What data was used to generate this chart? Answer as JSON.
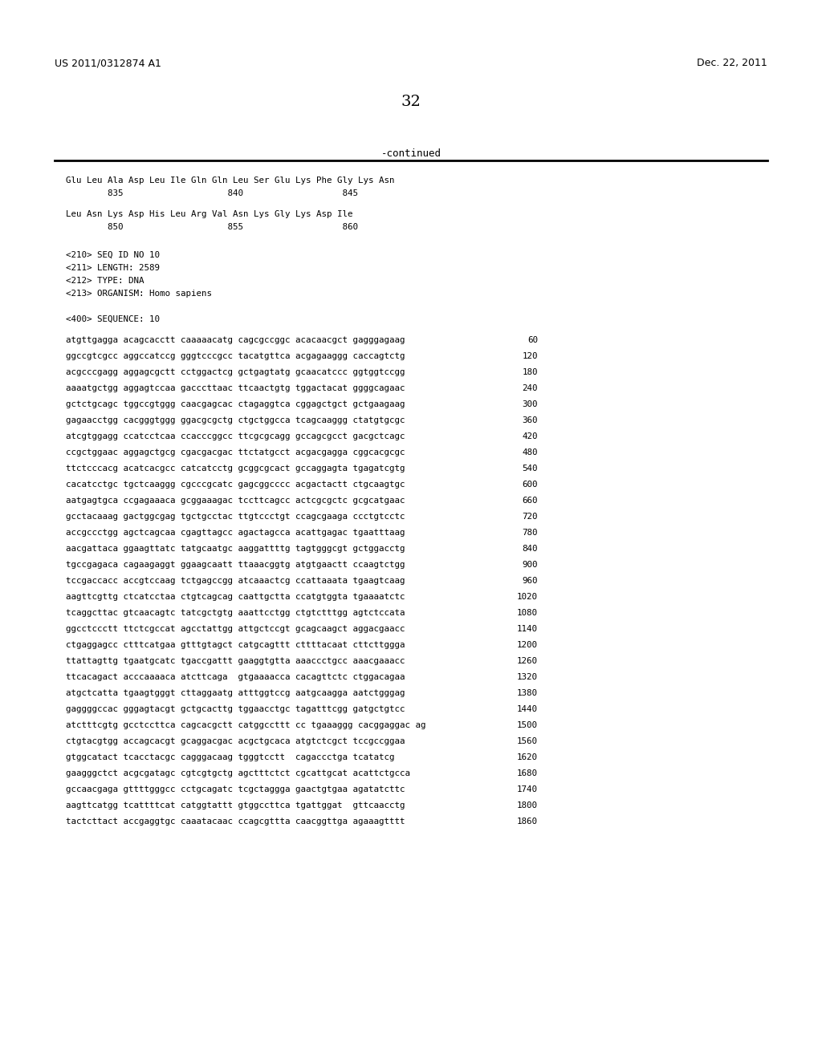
{
  "header_left": "US 2011/0312874 A1",
  "header_right": "Dec. 22, 2011",
  "page_number": "32",
  "continued_label": "-continued",
  "background_color": "#ffffff",
  "text_color": "#000000",
  "aa_line1": "Glu Leu Ala Asp Leu Ile Gln Gln Leu Ser Glu Lys Phe Gly Lys Asn",
  "aa_num1": "        835                    840                   845",
  "aa_line2": "Leu Asn Lys Asp His Leu Arg Val Asn Lys Gly Lys Asp Ile",
  "aa_num2": "        850                    855                   860",
  "seq_info": [
    "<210> SEQ ID NO 10",
    "<211> LENGTH: 2589",
    "<212> TYPE: DNA",
    "<213> ORGANISM: Homo sapiens"
  ],
  "seq_header": "<400> SEQUENCE: 10",
  "dna_lines": [
    {
      "seq": "atgttgagga acagcacctt caaaaacatg cagcgccggc acacaacgct gagggagaag",
      "num": "60"
    },
    {
      "seq": "ggccgtcgcc aggccatccg gggtcccgcc tacatgttca acgagaaggg caccagtctg",
      "num": "120"
    },
    {
      "seq": "acgcccgagg aggagcgctt cctggactcg gctgagtatg gcaacatccc ggtggtccgg",
      "num": "180"
    },
    {
      "seq": "aaaatgctgg aggagtccaa gacccttaac ttcaactgtg tggactacat ggggcagaac",
      "num": "240"
    },
    {
      "seq": "gctctgcagc tggccgtggg caacgagcac ctagaggtca cggagctgct gctgaagaag",
      "num": "300"
    },
    {
      "seq": "gagaacctgg cacgggtggg ggacgcgctg ctgctggcca tcagcaaggg ctatgtgcgc",
      "num": "360"
    },
    {
      "seq": "atcgtggagg ccatcctcaa ccacccggcc ttcgcgcagg gccagcgcct gacgctcagc",
      "num": "420"
    },
    {
      "seq": "ccgctggaac aggagctgcg cgacgacgac ttctatgcct acgacgagga cggcacgcgc",
      "num": "480"
    },
    {
      "seq": "ttctcccacg acatcacgcc catcatcctg gcggcgcact gccaggagta tgagatcgtg",
      "num": "540"
    },
    {
      "seq": "cacatcctgc tgctcaaggg cgcccgcatc gagcggcccc acgactactt ctgcaagtgc",
      "num": "600"
    },
    {
      "seq": "aatgagtgca ccgagaaaca gcggaaagac tccttcagcc actcgcgctc gcgcatgaac",
      "num": "660"
    },
    {
      "seq": "gcctacaaag gactggcgag tgctgcctac ttgtccctgt ccagcgaaga ccctgtcctc",
      "num": "720"
    },
    {
      "seq": "accgccctgg agctcagcaa cgagttagcc agactagcca acattgagac tgaatttaag",
      "num": "780"
    },
    {
      "seq": "aacgattaca ggaagttatc tatgcaatgc aaggattttg tagtgggcgt gctggacctg",
      "num": "840"
    },
    {
      "seq": "tgccgagaca cagaagaggt ggaagcaatt ttaaacggtg atgtgaactt ccaagtctgg",
      "num": "900"
    },
    {
      "seq": "tccgaccacc accgtccaag tctgagccgg atcaaactcg ccattaaata tgaagtcaag",
      "num": "960"
    },
    {
      "seq": "aagttcgttg ctcatcctaa ctgtcagcag caattgctta ccatgtggta tgaaaatctc",
      "num": "1020"
    },
    {
      "seq": "tcaggcttac gtcaacagtc tatcgctgtg aaattcctgg ctgtctttgg agtctccata",
      "num": "1080"
    },
    {
      "seq": "ggcctccctt ttctcgccat agcctattgg attgctccgt gcagcaagct aggacgaacc",
      "num": "1140"
    },
    {
      "seq": "ctgaggagcc ctttcatgaa gtttgtagct catgcagttt cttttacaat cttcttggga",
      "num": "1200"
    },
    {
      "seq": "ttattagttg tgaatgcatc tgaccgattt gaaggtgtta aaaccctgcc aaacgaaacc",
      "num": "1260"
    },
    {
      "seq": "ttcacagact acccaaaaca atcttcaga  gtgaaaacca cacagttctc ctggacagaa",
      "num": "1320"
    },
    {
      "seq": "atgctcatta tgaagtgggt cttaggaatg atttggtccg aatgcaagga aatctgggag",
      "num": "1380"
    },
    {
      "seq": "gaggggccac gggagtacgt gctgcacttg tggaacctgc tagatttcgg gatgctgtcc",
      "num": "1440"
    },
    {
      "seq": "atctttcgtg gcctccttca cagcacgctt catggccttt cc tgaaaggg cacggaggac ag",
      "num": "1500"
    },
    {
      "seq": "ctgtacgtgg accagcacgt gcaggacgac acgctgcaca atgtctcgct tccgccggaa",
      "num": "1560"
    },
    {
      "seq": "gtggcatact tcacctacgc cagggacaag tgggtcctt  cagaccctga tcatatcg",
      "num": "1620"
    },
    {
      "seq": "gaagggctct acgcgatagc cgtcgtgctg agctttctct cgcattgcat acattctgcca",
      "num": "1680"
    },
    {
      "seq": "gccaacgaga gttttgggcc cctgcagatc tcgctaggga gaactgtgaa agatatcttc",
      "num": "1740"
    },
    {
      "seq": "aagttcatgg tcattttcat catggtattt gtggccttca tgattggat  gttcaacctg",
      "num": "1800"
    },
    {
      "seq": "tactcttact accgaggtgc caaatacaac ccagcgttta caacggttga agaaagtttt",
      "num": "1860"
    }
  ]
}
